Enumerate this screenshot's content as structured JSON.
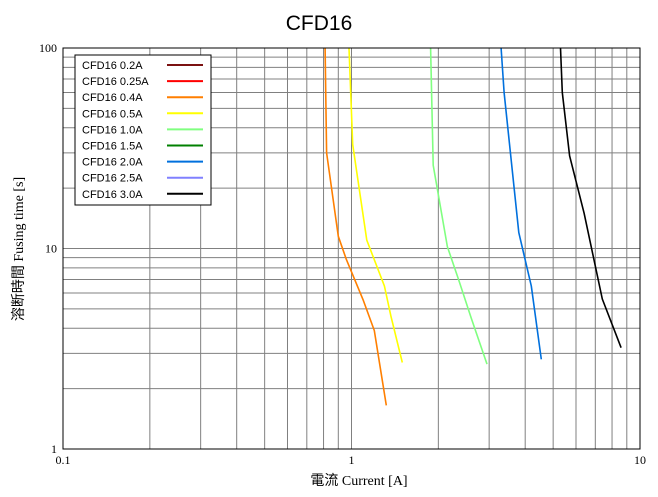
{
  "chart_data": {
    "type": "line",
    "title": "CFD16",
    "xlabel": "電流 Current [A]",
    "ylabel": "溶断時間 Fusing time [s]",
    "x_scale": "log",
    "y_scale": "log",
    "xlim": [
      0.1,
      10
    ],
    "ylim": [
      1,
      100
    ],
    "x_tick_labels": [
      "0.1",
      "1",
      "10"
    ],
    "y_tick_labels": [
      "1",
      "10",
      "100"
    ],
    "grid": true,
    "legend_position": "top-left",
    "series": [
      {
        "name": "CFD16 0.2A",
        "color": "#7b1111",
        "points": []
      },
      {
        "name": "CFD16 0.25A",
        "color": "#ff0000",
        "points": []
      },
      {
        "name": "CFD16 0.4A",
        "color": "#ff7f00",
        "points": [
          [
            0.81,
            100
          ],
          [
            0.82,
            30
          ],
          [
            0.9,
            11.5
          ],
          [
            0.96,
            8.8
          ],
          [
            1.1,
            5.5
          ],
          [
            1.2,
            3.9
          ],
          [
            1.32,
            1.65
          ]
        ]
      },
      {
        "name": "CFD16 0.5A",
        "color": "#ffff00",
        "points": [
          [
            0.98,
            100
          ],
          [
            1.01,
            33
          ],
          [
            1.13,
            11
          ],
          [
            1.3,
            6.5
          ],
          [
            1.37,
            4.6
          ],
          [
            1.5,
            2.7
          ]
        ]
      },
      {
        "name": "CFD16 1.0A",
        "color": "#80ff80",
        "points": [
          [
            1.88,
            100
          ],
          [
            1.92,
            26
          ],
          [
            2.15,
            10.2
          ],
          [
            2.35,
            7
          ],
          [
            2.6,
            4.5
          ],
          [
            2.95,
            2.65
          ]
        ]
      },
      {
        "name": "CFD16 1.5A",
        "color": "#008000",
        "points": []
      },
      {
        "name": "CFD16 2.0A",
        "color": "#0070dd",
        "points": [
          [
            3.3,
            100
          ],
          [
            3.38,
            60
          ],
          [
            3.8,
            12
          ],
          [
            4.2,
            6.5
          ],
          [
            4.55,
            2.8
          ]
        ]
      },
      {
        "name": "CFD16 2.5A",
        "color": "#8080ff",
        "points": []
      },
      {
        "name": "CFD16 3.0A",
        "color": "#000000",
        "points": [
          [
            5.3,
            100
          ],
          [
            5.38,
            60
          ],
          [
            5.7,
            29
          ],
          [
            6.4,
            15
          ],
          [
            7.4,
            5.6
          ],
          [
            8.6,
            3.2
          ]
        ]
      }
    ]
  }
}
